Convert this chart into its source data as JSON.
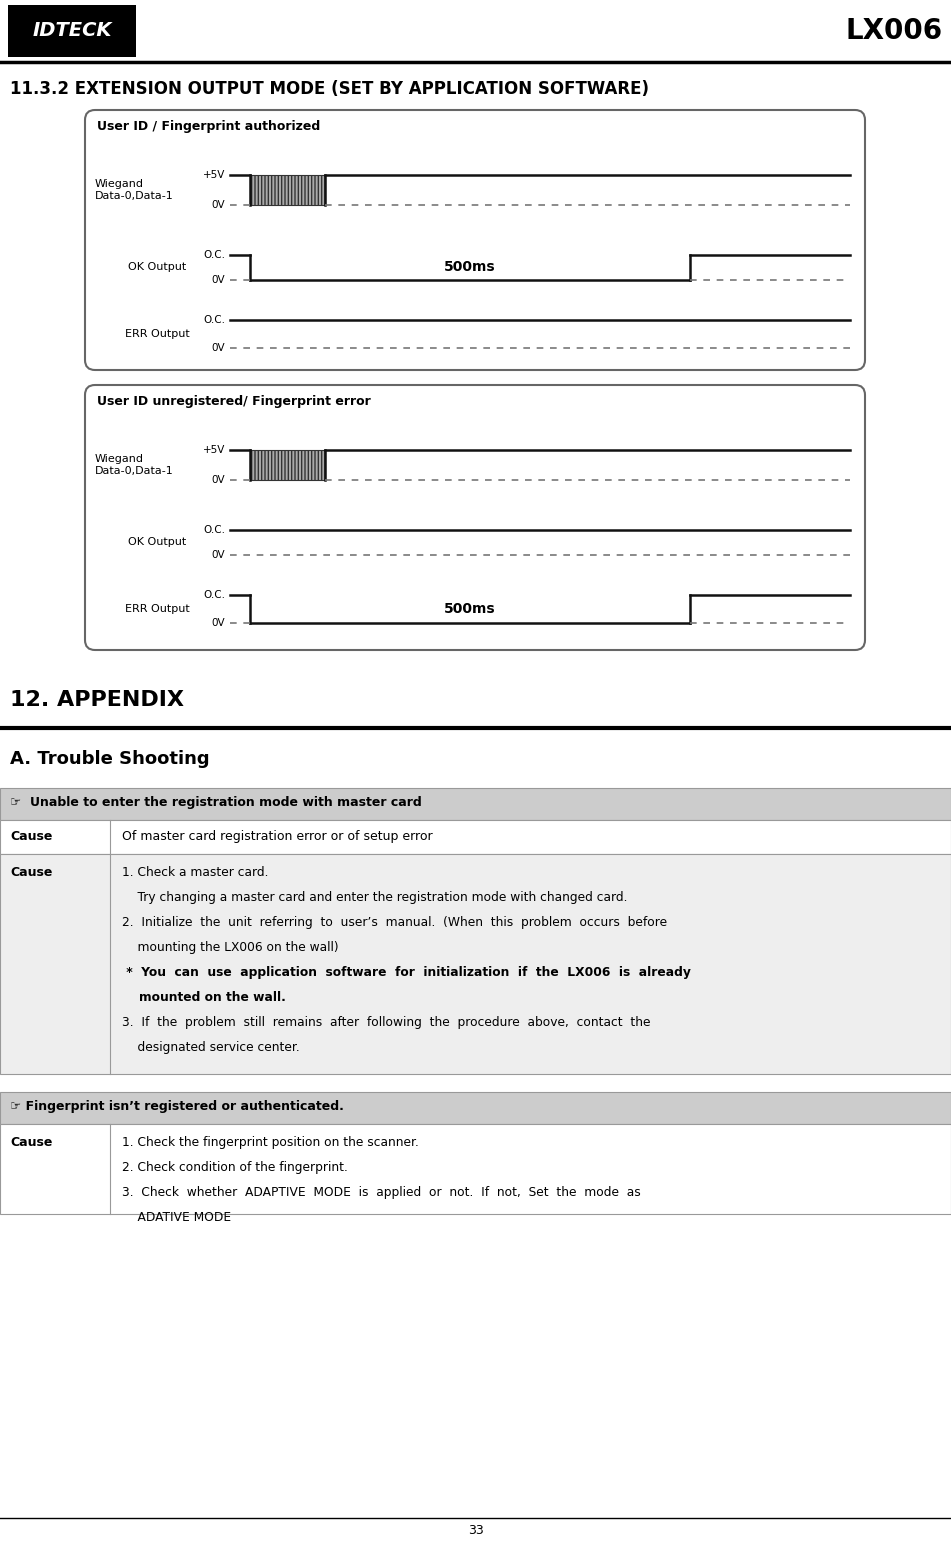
{
  "page_width": 9.51,
  "page_height": 15.46,
  "bg_color": "#ffffff",
  "logo_text": "IDTECK",
  "title_right": "LX006",
  "section_title": "11.3.2 EXTENSION OUTPUT MODE (SET BY APPLICATION SOFTWARE)",
  "box1_title": "User ID / Fingerprint authorized",
  "box2_title": "User ID unregistered/ Fingerprint error",
  "appendix_title": "12. APPENDIX",
  "trouble_title": "A. Trouble Shooting",
  "ms500_label": "500ms",
  "trouble_header1": "☞  Unable to enter the registration mode with master card",
  "cause_simple": "Of master card registration error or of setup error",
  "fingerprint_header": "☞ Fingerprint isn’t registered or authenticated.",
  "page_number": "33",
  "signal_color": "#111111",
  "dash_color": "#777777",
  "box_edge": "#666666",
  "table_edge": "#999999",
  "header_bg": "#cccccc",
  "cause_bg2": "#eeeeee"
}
